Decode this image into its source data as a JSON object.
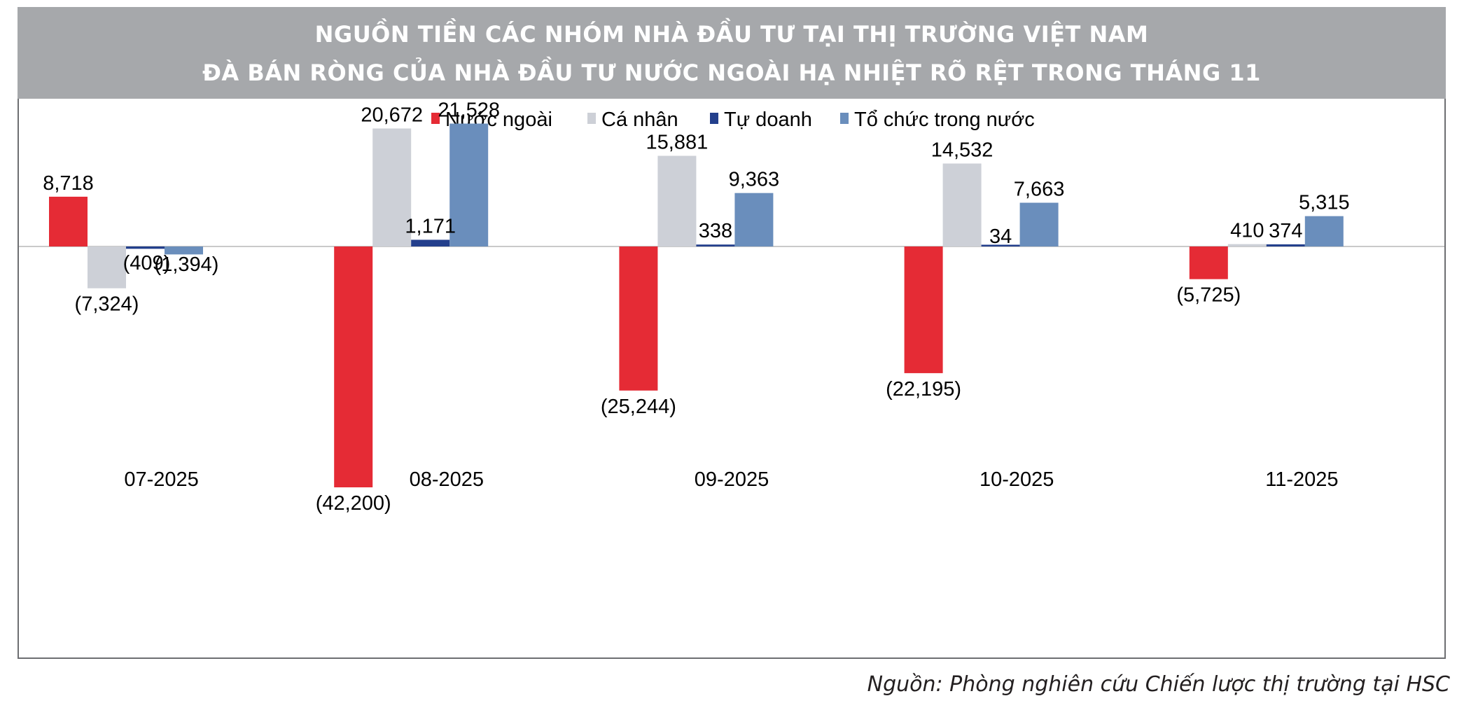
{
  "header": {
    "title_line1": "NGUỒN TIỀN CÁC NHÓM NHÀ ĐẦU TƯ TẠI THỊ TRƯỜNG VIỆT NAM",
    "title_line2": "ĐÀ BÁN RÒNG CỦA NHÀ ĐẦU TƯ NƯỚC NGOÀI HẠ NHIỆT RÕ RỆT TRONG THÁNG 11"
  },
  "source": "Nguồn: Phòng nghiên cứu Chiến lược thị trường tại HSC",
  "chart_data": {
    "type": "bar",
    "title": "NGUỒN TIỀN CÁC NHÓM NHÀ ĐẦU TƯ TẠI THỊ TRƯỜNG VIỆT NAM",
    "subtitle": "ĐÀ BÁN RÒNG CỦA NHÀ ĐẦU TƯ NƯỚC NGOÀI HẠ NHIỆT RÕ RỆT TRONG THÁNG 11",
    "categories": [
      "07-2025",
      "08-2025",
      "09-2025",
      "10-2025",
      "11-2025"
    ],
    "series": [
      {
        "name": "Nước ngoài",
        "color": "#e52b35",
        "values": [
          8718,
          -42200,
          -25244,
          -22195,
          -5725
        ],
        "labels": [
          "8,718",
          "(42,200)",
          "(25,244)",
          "(22,195)",
          "(5,725)"
        ]
      },
      {
        "name": "Cá nhân",
        "color": "#cdd0d7",
        "values": [
          -7324,
          20672,
          15881,
          14532,
          410
        ],
        "labels": [
          "(7,324)",
          "20,672",
          "15,881",
          "14,532",
          "410"
        ]
      },
      {
        "name": "Tự doanh",
        "color": "#233f8c",
        "values": [
          -409,
          1171,
          338,
          34,
          374
        ],
        "labels": [
          "(409)",
          "1,171",
          "338",
          "34",
          "374"
        ]
      },
      {
        "name": "Tổ chức trong nước",
        "color": "#6a8ebc",
        "values": [
          -1394,
          21528,
          9363,
          7663,
          5315
        ],
        "labels": [
          "(1,394)",
          "21,528",
          "9,363",
          "7,663",
          "5,315"
        ]
      }
    ],
    "xlabel": "",
    "ylabel": "",
    "ylim": [
      -55000,
      35000
    ],
    "grid": false,
    "legend_position": "top-center",
    "colors": {
      "header_bg": "#a6a8ab",
      "zero_line": "#c9c9c9",
      "frame": "#6d6e71"
    }
  }
}
